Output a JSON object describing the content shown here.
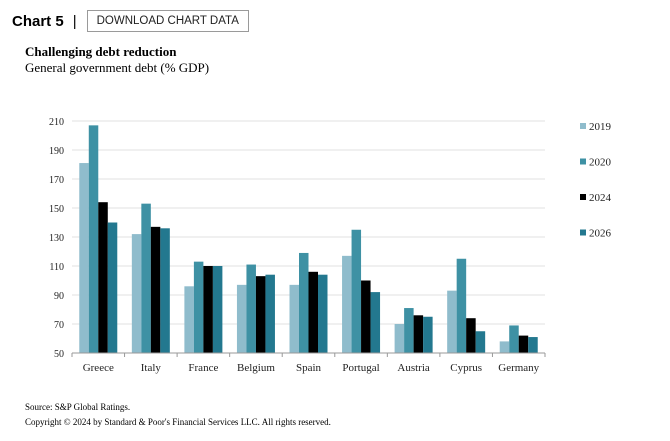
{
  "header": {
    "chart_label": "Chart 5",
    "separator": "|",
    "download_label": "DOWNLOAD CHART DATA"
  },
  "chart_data": {
    "type": "bar",
    "title": "Challenging debt reduction",
    "subtitle": "General government debt (% GDP)",
    "xlabel": "",
    "ylabel": "",
    "ylim": [
      50,
      210
    ],
    "yticks": [
      50,
      70,
      90,
      110,
      130,
      150,
      170,
      190,
      210
    ],
    "grid": true,
    "legend_position": "right",
    "categories": [
      "Greece",
      "Italy",
      "France",
      "Belgium",
      "Spain",
      "Portugal",
      "Austria",
      "Cyprus",
      "Germany"
    ],
    "series": [
      {
        "name": "2019",
        "color": "#8fbccc",
        "values": [
          181,
          132,
          96,
          97,
          97,
          117,
          70,
          93,
          58
        ]
      },
      {
        "name": "2020",
        "color": "#3e91a4",
        "values": [
          207,
          153,
          113,
          111,
          119,
          135,
          81,
          115,
          69
        ]
      },
      {
        "name": "2024",
        "color": "#000000",
        "values": [
          154,
          137,
          110,
          103,
          106,
          100,
          76,
          74,
          62
        ]
      },
      {
        "name": "2026",
        "color": "#23788f",
        "values": [
          140,
          136,
          110,
          104,
          104,
          92,
          75,
          65,
          61
        ]
      }
    ]
  },
  "footer": {
    "source": "Source: S&P Global Ratings.",
    "copyright": "Copyright © 2024 by Standard & Poor's Financial Services LLC. All rights reserved."
  }
}
